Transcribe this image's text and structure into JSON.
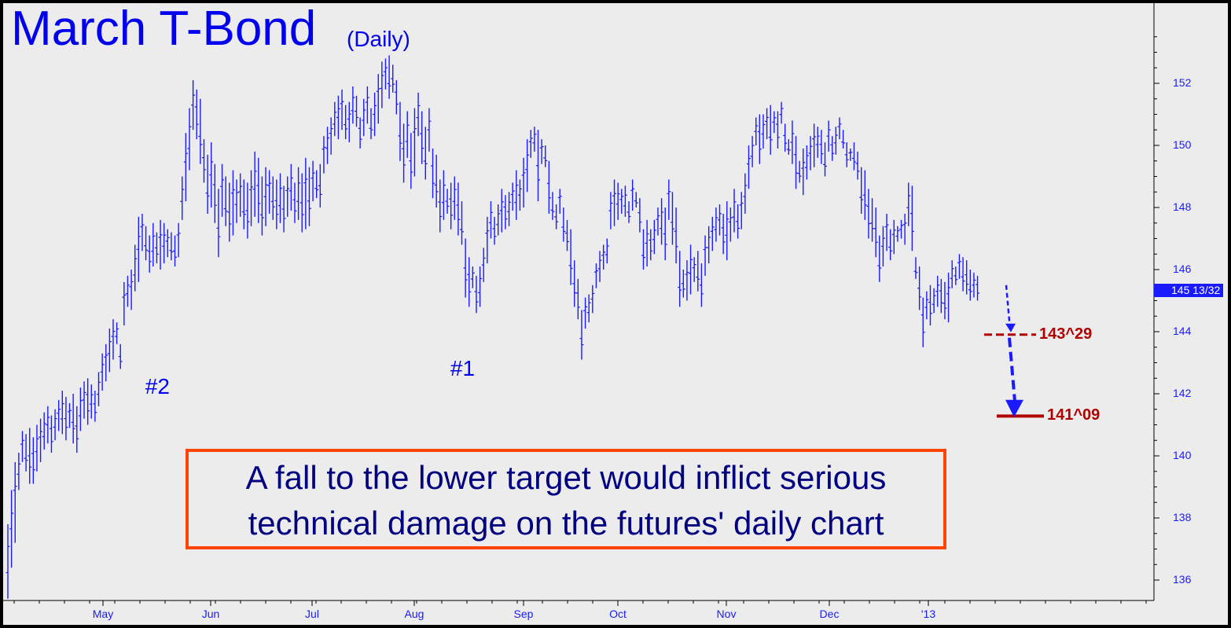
{
  "chart_data": {
    "type": "bar",
    "subtype": "ohlc-daily",
    "title": "March T-Bond",
    "subtitle": "(Daily)",
    "x_tick_labels": [
      "May",
      "Jun",
      "Jul",
      "Aug",
      "Sep",
      "Oct",
      "Nov",
      "Dec",
      "'13"
    ],
    "y_ticks": [
      136,
      138,
      140,
      142,
      144,
      146,
      148,
      150,
      152
    ],
    "ylim": [
      135.3,
      153.8
    ],
    "grid": false,
    "last_price_label": "145 13/32",
    "colors": {
      "bars": "#1a1aff",
      "targets": "#b00000",
      "callout_border": "#ff4500",
      "callout_text": "#000080",
      "background": "#ececec"
    },
    "bars": [
      [
        135.4,
        137.8
      ],
      [
        136.4,
        138.9
      ],
      [
        137.2,
        139.8
      ],
      [
        138.9,
        140.1
      ],
      [
        139.8,
        140.8
      ],
      [
        139.5,
        140.7
      ],
      [
        139.1,
        140.9
      ],
      [
        139.1,
        140.6
      ],
      [
        139.5,
        141.0
      ],
      [
        139.8,
        141.2
      ],
      [
        140.2,
        141.4
      ],
      [
        140.4,
        141.6
      ],
      [
        140.1,
        141.3
      ],
      [
        140.5,
        141.5
      ],
      [
        140.8,
        141.8
      ],
      [
        140.7,
        142.1
      ],
      [
        140.5,
        141.9
      ],
      [
        140.9,
        141.7
      ],
      [
        140.4,
        142.0
      ],
      [
        140.1,
        141.6
      ],
      [
        140.8,
        142.2
      ],
      [
        141.2,
        142.4
      ],
      [
        141.0,
        142.5
      ],
      [
        141.2,
        142.3
      ],
      [
        141.1,
        142.1
      ],
      [
        141.6,
        142.7
      ],
      [
        142.1,
        143.3
      ],
      [
        142.4,
        143.6
      ],
      [
        142.7,
        144.1
      ],
      [
        143.1,
        144.4
      ],
      [
        143.6,
        144.3
      ],
      [
        142.8,
        143.6
      ],
      [
        144.2,
        145.6
      ],
      [
        144.8,
        145.8
      ],
      [
        144.7,
        146.0
      ],
      [
        145.3,
        146.8
      ],
      [
        145.6,
        147.7
      ],
      [
        146.6,
        147.8
      ],
      [
        146.3,
        147.4
      ],
      [
        145.9,
        147.1
      ],
      [
        146.1,
        147.5
      ],
      [
        146.2,
        147.2
      ],
      [
        146.0,
        147.6
      ],
      [
        146.2,
        147.5
      ],
      [
        146.4,
        147.3
      ],
      [
        146.3,
        147.2
      ],
      [
        146.1,
        147.1
      ],
      [
        146.4,
        147.5
      ],
      [
        147.6,
        149.0
      ],
      [
        148.2,
        150.4
      ],
      [
        149.2,
        151.2
      ],
      [
        150.5,
        152.1
      ],
      [
        150.2,
        151.8
      ],
      [
        149.4,
        151.5
      ],
      [
        148.8,
        150.2
      ],
      [
        147.8,
        149.7
      ],
      [
        148.0,
        150.1
      ],
      [
        147.5,
        149.4
      ],
      [
        146.4,
        148.6
      ],
      [
        147.7,
        149.4
      ],
      [
        147.4,
        149.0
      ],
      [
        146.9,
        148.8
      ],
      [
        147.1,
        149.2
      ],
      [
        147.5,
        148.9
      ],
      [
        147.7,
        149.1
      ],
      [
        147.3,
        148.9
      ],
      [
        147.0,
        148.8
      ],
      [
        147.4,
        149.2
      ],
      [
        147.7,
        149.8
      ],
      [
        147.5,
        149.6
      ],
      [
        147.1,
        149.0
      ],
      [
        147.4,
        149.3
      ],
      [
        147.8,
        149.2
      ],
      [
        147.6,
        149.0
      ],
      [
        147.3,
        148.9
      ],
      [
        147.5,
        149.1
      ],
      [
        147.2,
        148.7
      ],
      [
        147.7,
        149.0
      ],
      [
        147.9,
        149.4
      ],
      [
        147.5,
        148.8
      ],
      [
        147.6,
        149.3
      ],
      [
        147.2,
        149.1
      ],
      [
        147.3,
        149.6
      ],
      [
        147.4,
        149.3
      ],
      [
        148.2,
        149.5
      ],
      [
        148.3,
        149.2
      ],
      [
        148.0,
        149.4
      ],
      [
        149.1,
        150.3
      ],
      [
        149.4,
        150.6
      ],
      [
        149.7,
        150.9
      ],
      [
        150.3,
        151.4
      ],
      [
        150.2,
        151.6
      ],
      [
        150.5,
        151.8
      ],
      [
        150.2,
        151.3
      ],
      [
        150.1,
        151.4
      ],
      [
        150.7,
        151.9
      ],
      [
        150.6,
        151.6
      ],
      [
        149.9,
        150.9
      ],
      [
        150.3,
        151.5
      ],
      [
        150.7,
        151.9
      ],
      [
        150.2,
        151.2
      ],
      [
        150.3,
        151.7
      ],
      [
        150.7,
        152.3
      ],
      [
        151.2,
        152.7
      ],
      [
        151.8,
        152.8
      ],
      [
        151.5,
        152.9
      ],
      [
        151.7,
        152.6
      ],
      [
        151.0,
        152.1
      ],
      [
        149.5,
        151.4
      ],
      [
        148.8,
        150.7
      ],
      [
        149.6,
        151.1
      ],
      [
        148.6,
        150.4
      ],
      [
        149.0,
        151.2
      ],
      [
        150.3,
        151.7
      ],
      [
        149.4,
        151.1
      ],
      [
        148.9,
        150.6
      ],
      [
        149.8,
        151.2
      ],
      [
        148.3,
        149.9
      ],
      [
        148.0,
        149.7
      ],
      [
        147.2,
        148.9
      ],
      [
        147.6,
        149.2
      ],
      [
        147.8,
        148.6
      ],
      [
        147.3,
        148.8
      ],
      [
        147.6,
        149.0
      ],
      [
        147.1,
        148.8
      ],
      [
        146.8,
        148.2
      ],
      [
        145.1,
        147.0
      ],
      [
        144.8,
        146.4
      ],
      [
        145.4,
        146.1
      ],
      [
        144.6,
        145.8
      ],
      [
        144.8,
        146.1
      ],
      [
        145.6,
        146.7
      ],
      [
        146.2,
        147.7
      ],
      [
        147.0,
        148.2
      ],
      [
        146.8,
        147.7
      ],
      [
        147.1,
        148.1
      ],
      [
        147.2,
        148.6
      ],
      [
        147.3,
        148.4
      ],
      [
        147.4,
        148.5
      ],
      [
        147.9,
        148.8
      ],
      [
        147.6,
        149.2
      ],
      [
        147.9,
        148.9
      ],
      [
        148.0,
        149.6
      ],
      [
        148.5,
        150.2
      ],
      [
        149.6,
        150.5
      ],
      [
        149.8,
        150.6
      ],
      [
        148.2,
        150.5
      ],
      [
        149.4,
        150.2
      ],
      [
        149.3,
        150.0
      ],
      [
        147.8,
        149.5
      ],
      [
        147.6,
        148.5
      ],
      [
        147.3,
        148.1
      ],
      [
        147.8,
        148.6
      ],
      [
        146.9,
        148.0
      ],
      [
        146.6,
        147.6
      ],
      [
        145.5,
        147.3
      ],
      [
        144.8,
        146.3
      ],
      [
        144.4,
        145.7
      ],
      [
        143.1,
        144.7
      ],
      [
        144.1,
        145.1
      ],
      [
        144.3,
        145.2
      ],
      [
        144.6,
        145.5
      ],
      [
        145.4,
        146.2
      ],
      [
        145.6,
        146.6
      ],
      [
        146.0,
        146.8
      ],
      [
        146.2,
        147.0
      ],
      [
        147.3,
        148.5
      ],
      [
        147.4,
        148.9
      ],
      [
        147.6,
        148.8
      ],
      [
        147.8,
        148.6
      ],
      [
        147.7,
        148.7
      ],
      [
        147.5,
        148.2
      ],
      [
        147.9,
        148.9
      ],
      [
        148.0,
        148.5
      ],
      [
        147.2,
        148.3
      ],
      [
        146.0,
        147.3
      ],
      [
        146.1,
        147.6
      ],
      [
        146.3,
        147.3
      ],
      [
        146.5,
        147.6
      ],
      [
        147.1,
        148.0
      ],
      [
        146.8,
        148.3
      ],
      [
        146.3,
        148.0
      ],
      [
        147.6,
        148.9
      ],
      [
        146.8,
        148.5
      ],
      [
        146.2,
        148.0
      ],
      [
        144.8,
        146.6
      ],
      [
        145.1,
        146.0
      ],
      [
        145.0,
        146.3
      ],
      [
        145.2,
        146.8
      ],
      [
        145.6,
        146.4
      ],
      [
        145.3,
        146.6
      ],
      [
        144.8,
        146.2
      ],
      [
        145.8,
        147.1
      ],
      [
        146.2,
        147.4
      ],
      [
        146.6,
        147.7
      ],
      [
        146.9,
        148.0
      ],
      [
        147.1,
        148.1
      ],
      [
        146.5,
        147.8
      ],
      [
        146.3,
        148.2
      ],
      [
        146.9,
        148.0
      ],
      [
        147.2,
        148.6
      ],
      [
        147.0,
        148.1
      ],
      [
        147.3,
        148.5
      ],
      [
        147.8,
        149.1
      ],
      [
        148.6,
        150.0
      ],
      [
        149.3,
        150.3
      ],
      [
        150.0,
        150.9
      ],
      [
        149.4,
        151.0
      ],
      [
        149.9,
        151.0
      ],
      [
        150.2,
        151.2
      ],
      [
        149.7,
        151.3
      ],
      [
        150.4,
        151.1
      ],
      [
        149.9,
        151.1
      ],
      [
        150.7,
        151.4
      ],
      [
        149.8,
        150.7
      ],
      [
        149.7,
        150.2
      ],
      [
        149.4,
        150.8
      ],
      [
        148.6,
        150.3
      ],
      [
        148.8,
        149.5
      ],
      [
        148.4,
        149.9
      ],
      [
        148.9,
        150.0
      ],
      [
        149.2,
        150.3
      ],
      [
        149.3,
        150.7
      ],
      [
        149.6,
        150.6
      ],
      [
        149.4,
        150.5
      ],
      [
        149.0,
        150.1
      ],
      [
        149.8,
        150.8
      ],
      [
        149.5,
        150.3
      ],
      [
        149.7,
        150.6
      ],
      [
        150.2,
        150.9
      ],
      [
        149.9,
        150.5
      ],
      [
        149.3,
        150.1
      ],
      [
        149.5,
        149.9
      ],
      [
        149.2,
        150.1
      ],
      [
        148.9,
        149.8
      ],
      [
        147.8,
        149.3
      ],
      [
        147.6,
        149.2
      ],
      [
        147.0,
        148.6
      ],
      [
        146.9,
        148.3
      ],
      [
        146.4,
        148.0
      ],
      [
        145.6,
        147.1
      ],
      [
        146.1,
        147.4
      ],
      [
        146.6,
        147.8
      ],
      [
        146.3,
        147.3
      ],
      [
        146.5,
        147.6
      ],
      [
        146.9,
        147.4
      ],
      [
        147.0,
        147.6
      ],
      [
        146.8,
        147.8
      ],
      [
        147.4,
        148.8
      ],
      [
        146.6,
        148.7
      ],
      [
        145.7,
        146.4
      ],
      [
        144.7,
        146.1
      ],
      [
        143.5,
        145.1
      ],
      [
        144.4,
        145.3
      ],
      [
        144.2,
        145.5
      ],
      [
        144.6,
        145.4
      ],
      [
        144.8,
        145.8
      ],
      [
        144.6,
        145.7
      ],
      [
        144.4,
        145.6
      ],
      [
        144.3,
        145.9
      ],
      [
        145.4,
        146.3
      ],
      [
        145.5,
        146.1
      ],
      [
        145.7,
        146.5
      ],
      [
        145.3,
        146.4
      ],
      [
        145.2,
        146.3
      ],
      [
        145.0,
        146.0
      ],
      [
        145.1,
        145.9
      ],
      [
        145.0,
        145.8
      ]
    ],
    "annotations": [
      {
        "label": "#2",
        "x_index": 40
      },
      {
        "label": "#1",
        "x_index": 124
      }
    ],
    "targets": [
      {
        "label": "143^29",
        "value": 143.906,
        "style": "dashed"
      },
      {
        "label": "141^09",
        "value": 141.281,
        "style": "solid"
      }
    ],
    "projection_arrow": {
      "from": 145.5,
      "to": 141.5
    }
  },
  "callout": {
    "line1": "A fall to the lower target would inflict serious",
    "line2": "technical damage on the futures' daily chart"
  }
}
